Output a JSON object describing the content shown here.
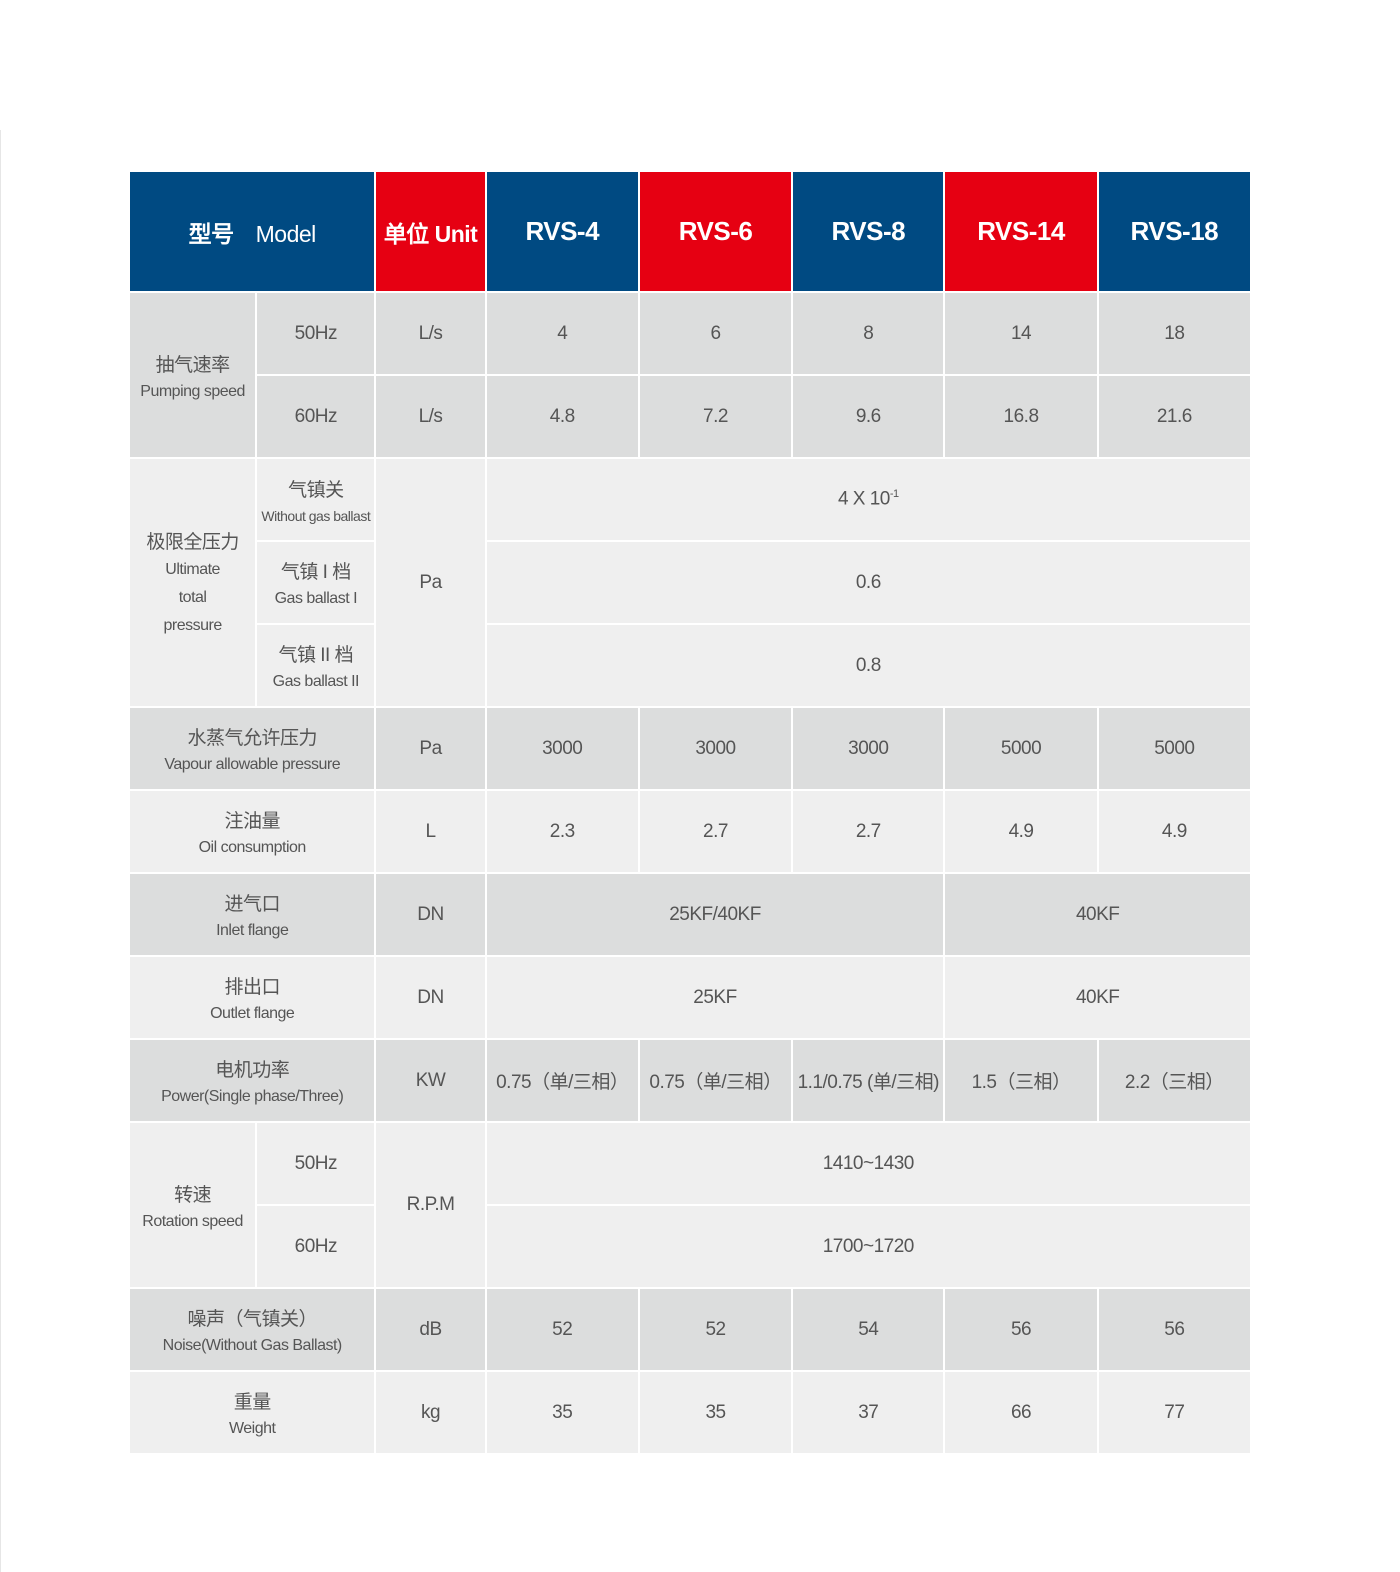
{
  "header": {
    "model_cn": "型号",
    "model_en": "Model",
    "unit": "单位 Unit",
    "models": [
      "RVS-4",
      "RVS-6",
      "RVS-8",
      "RVS-14",
      "RVS-18"
    ]
  },
  "colors": {
    "blue": "#004a82",
    "red": "#e60012",
    "row_dark": "#dcdddd",
    "row_light": "#efefef"
  },
  "pumping_speed": {
    "cn": "抽气速率",
    "en": "Pumping speed",
    "rows": [
      {
        "sub": "50Hz",
        "unit": "L/s",
        "values": [
          "4",
          "6",
          "8",
          "14",
          "18"
        ]
      },
      {
        "sub": "60Hz",
        "unit": "L/s",
        "values": [
          "4.8",
          "7.2",
          "9.6",
          "16.8",
          "21.6"
        ]
      }
    ]
  },
  "ultimate_pressure": {
    "cn": "极限全压力",
    "en1": "Ultimate",
    "en2": "total",
    "en3": "pressure",
    "unit": "Pa",
    "rows": [
      {
        "sub_cn": "气镇关",
        "sub_en": "Without gas ballast",
        "value_base": "4 X 10",
        "value_exp": "-1"
      },
      {
        "sub_cn": "气镇 I 档",
        "sub_en": "Gas ballast I",
        "value": "0.6"
      },
      {
        "sub_cn": "气镇 II 档",
        "sub_en": "Gas ballast II",
        "value": "0.8"
      }
    ]
  },
  "vapour": {
    "cn": "水蒸气允许压力",
    "en": "Vapour allowable pressure",
    "unit": "Pa",
    "values": [
      "3000",
      "3000",
      "3000",
      "5000",
      "5000"
    ]
  },
  "oil": {
    "cn": "注油量",
    "en": "Oil consumption",
    "unit": "L",
    "values": [
      "2.3",
      "2.7",
      "2.7",
      "4.9",
      "4.9"
    ]
  },
  "inlet": {
    "cn": "进气口",
    "en": "Inlet flange",
    "unit": "DN",
    "values": [
      "25KF/40KF",
      "40KF"
    ]
  },
  "outlet": {
    "cn": "排出口",
    "en": "Outlet flange",
    "unit": "DN",
    "values": [
      "25KF",
      "40KF"
    ]
  },
  "power": {
    "cn": "电机功率",
    "en": "Power(Single phase/Three)",
    "unit": "KW",
    "values": [
      "0.75（单/三相）",
      "0.75（单/三相）",
      "1.1/0.75 (单/三相)",
      "1.5（三相）",
      "2.2（三相）"
    ]
  },
  "rotation": {
    "cn": "转速",
    "en": "Rotation speed",
    "unit": "R.P.M",
    "rows": [
      {
        "sub": "50Hz",
        "value": "1410~1430"
      },
      {
        "sub": "60Hz",
        "value": "1700~1720"
      }
    ]
  },
  "noise": {
    "cn": "噪声（气镇关）",
    "en": "Noise(Without Gas Ballast)",
    "unit": "dB",
    "values": [
      "52",
      "52",
      "54",
      "56",
      "56"
    ]
  },
  "weight": {
    "cn": "重量",
    "en": "Weight",
    "unit": "kg",
    "values": [
      "35",
      "35",
      "37",
      "66",
      "77"
    ]
  }
}
